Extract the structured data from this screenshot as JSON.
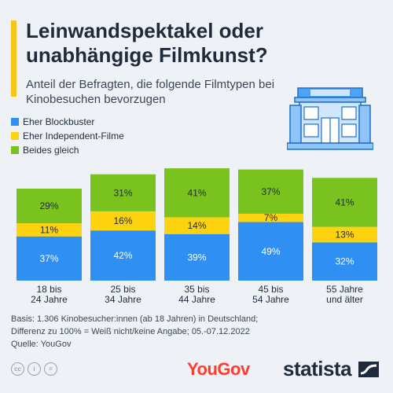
{
  "header": {
    "title": "Leinwandspektakel oder unabhängige Filmkunst?",
    "subtitle": "Anteil der Befragten, die folgende Filmtypen bei Kinobesuchen bevorzugen"
  },
  "colors": {
    "blockbuster": "#2f8ff2",
    "independent": "#fdd20e",
    "both": "#7ac21e",
    "accent": "#f5c518"
  },
  "chart_data": {
    "type": "bar",
    "stacked": true,
    "categories": [
      "18 bis 24 Jahre",
      "25 bis 34 Jahre",
      "35 bis 44 Jahre",
      "45 bis 54 Jahre",
      "55 Jahre und älter"
    ],
    "category_lines": [
      [
        "18 bis",
        "24 Jahre"
      ],
      [
        "25 bis",
        "34 Jahre"
      ],
      [
        "35 bis",
        "44 Jahre"
      ],
      [
        "45 bis",
        "54 Jahre"
      ],
      [
        "55 Jahre",
        "und älter"
      ]
    ],
    "series": [
      {
        "name": "Eher Blockbuster",
        "color": "#2f8ff2",
        "values": [
          37,
          42,
          39,
          49,
          32
        ]
      },
      {
        "name": "Eher Independent-Filme",
        "color": "#fdd20e",
        "values": [
          11,
          16,
          14,
          7,
          13
        ]
      },
      {
        "name": "Beides gleich",
        "color": "#7ac21e",
        "values": [
          29,
          31,
          41,
          37,
          41
        ]
      }
    ],
    "unit": "%",
    "legend_position": "top-left",
    "grid": false
  },
  "footer": {
    "lines": [
      "Basis: 1.306 Kinobesucher:innen (ab 18 Jahren) in Deutschland;",
      "Differenz zu 100% = Weiß nicht/keine Angabe; 05.-07.12.2022",
      "Quelle: YouGov"
    ]
  },
  "brands": {
    "source_logo": "YouGov",
    "publisher_logo": "statista"
  },
  "icons": [
    "cinema-building-icon",
    "cc-license-icon",
    "person-attribution-icon",
    "equals-icon",
    "statista-logo-icon"
  ]
}
